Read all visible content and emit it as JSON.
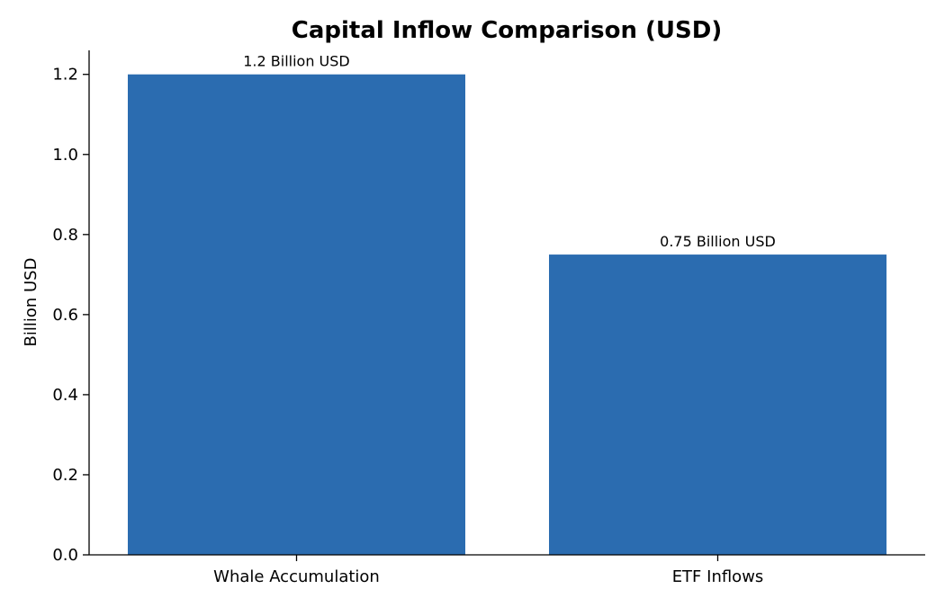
{
  "chart_data": {
    "type": "bar",
    "title": "Capital Inflow Comparison (USD)",
    "xlabel": "",
    "ylabel": "Billion USD",
    "categories": [
      "Whale Accumulation",
      "ETF Inflows"
    ],
    "values": [
      1.2,
      0.75
    ],
    "data_labels": [
      "1.2 Billion USD",
      "0.75 Billion USD"
    ],
    "ylim": [
      0,
      1.26
    ],
    "yticks": [
      0.0,
      0.2,
      0.4,
      0.6,
      0.8,
      1.0,
      1.2
    ],
    "ytick_labels": [
      "0.0",
      "0.2",
      "0.4",
      "0.6",
      "0.8",
      "1.0",
      "1.2"
    ],
    "bar_color": "#2b6cb0",
    "grid": false,
    "legend": "none"
  }
}
